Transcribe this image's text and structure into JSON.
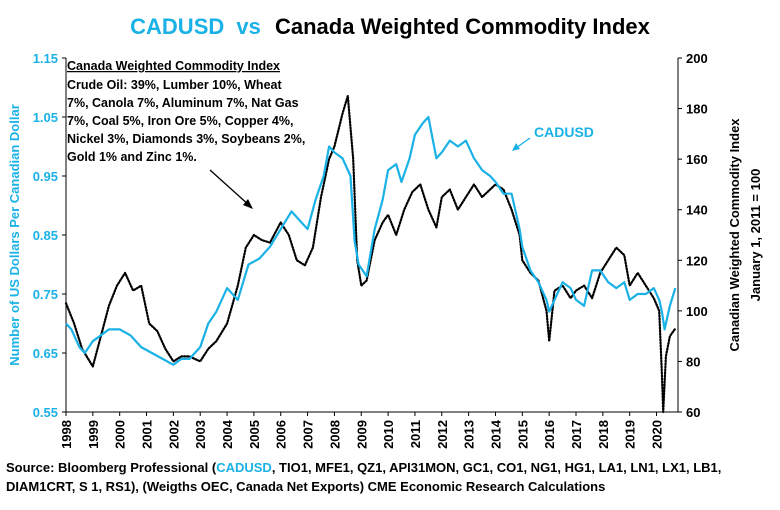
{
  "chart_data": {
    "type": "line",
    "title_part1": "CADUSD",
    "title_vs": "vs",
    "title_part2": "Canada Weighted Commodity Index",
    "ylabel_left": "Number of US Dollars Per Canadian Dollar",
    "ylabel_right_1": "Canadian Weighted Commodity Index",
    "ylabel_right_2": "January 1, 2011 = 100",
    "ylim_left": [
      0.55,
      1.15
    ],
    "yticks_left": [
      "1.15",
      "1.05",
      "0.95",
      "0.85",
      "0.75",
      "0.65",
      "0.55"
    ],
    "ylim_right": [
      60,
      200
    ],
    "yticks_right": [
      "200",
      "180",
      "160",
      "140",
      "120",
      "100",
      "80",
      "60"
    ],
    "xlim": [
      1998,
      2020.8
    ],
    "xticks": [
      "1998",
      "1999",
      "2000",
      "2001",
      "2002",
      "2003",
      "2004",
      "2005",
      "2006",
      "2007",
      "2008",
      "2009",
      "2010",
      "2011",
      "2012",
      "2013",
      "2014",
      "2015",
      "2016",
      "2017",
      "2018",
      "2019",
      "2020"
    ],
    "series": [
      {
        "name": "CADUSD",
        "axis": "left",
        "color": "#1ab2e6",
        "style": "solid",
        "x": [
          1998.0,
          1998.2,
          1998.5,
          1998.7,
          1999.0,
          1999.3,
          1999.6,
          2000.0,
          2000.4,
          2000.8,
          2001.2,
          2001.6,
          2002.0,
          2002.3,
          2002.6,
          2003.0,
          2003.3,
          2003.6,
          2004.0,
          2004.4,
          2004.8,
          2005.2,
          2005.6,
          2006.0,
          2006.4,
          2006.8,
          2007.0,
          2007.3,
          2007.6,
          2007.8,
          2008.0,
          2008.3,
          2008.6,
          2008.75,
          2008.9,
          2009.2,
          2009.5,
          2009.8,
          2010.0,
          2010.3,
          2010.5,
          2010.8,
          2011.0,
          2011.3,
          2011.5,
          2011.8,
          2012.0,
          2012.3,
          2012.6,
          2012.9,
          2013.2,
          2013.5,
          2013.8,
          2014.0,
          2014.3,
          2014.6,
          2014.9,
          2015.0,
          2015.3,
          2015.6,
          2015.9,
          2016.0,
          2016.2,
          2016.5,
          2016.8,
          2017.0,
          2017.3,
          2017.6,
          2017.9,
          2018.2,
          2018.5,
          2018.8,
          2019.0,
          2019.3,
          2019.6,
          2019.9,
          2020.1,
          2020.2,
          2020.3,
          2020.5,
          2020.7
        ],
        "y": [
          0.7,
          0.69,
          0.66,
          0.65,
          0.67,
          0.68,
          0.69,
          0.69,
          0.68,
          0.66,
          0.65,
          0.64,
          0.63,
          0.64,
          0.64,
          0.66,
          0.7,
          0.72,
          0.76,
          0.74,
          0.8,
          0.81,
          0.83,
          0.86,
          0.89,
          0.87,
          0.86,
          0.91,
          0.95,
          1.0,
          0.99,
          0.98,
          0.95,
          0.84,
          0.8,
          0.78,
          0.86,
          0.91,
          0.96,
          0.97,
          0.94,
          0.98,
          1.02,
          1.04,
          1.05,
          0.98,
          0.99,
          1.01,
          1.0,
          1.01,
          0.98,
          0.96,
          0.95,
          0.94,
          0.92,
          0.92,
          0.86,
          0.83,
          0.79,
          0.77,
          0.74,
          0.72,
          0.74,
          0.77,
          0.76,
          0.74,
          0.73,
          0.79,
          0.79,
          0.77,
          0.76,
          0.77,
          0.74,
          0.75,
          0.75,
          0.76,
          0.74,
          0.72,
          0.69,
          0.73,
          0.76
        ]
      },
      {
        "name": "Canada Weighted Commodity Index",
        "axis": "right",
        "color": "#000000",
        "style": "dotted",
        "x": [
          1998.0,
          1998.3,
          1998.6,
          1999.0,
          1999.3,
          1999.6,
          1999.9,
          2000.2,
          2000.5,
          2000.8,
          2001.1,
          2001.4,
          2001.7,
          2002.0,
          2002.3,
          2002.6,
          2003.0,
          2003.3,
          2003.6,
          2004.0,
          2004.4,
          2004.7,
          2005.0,
          2005.3,
          2005.6,
          2006.0,
          2006.3,
          2006.6,
          2006.9,
          2007.2,
          2007.5,
          2007.8,
          2008.0,
          2008.3,
          2008.5,
          2008.7,
          2008.85,
          2009.0,
          2009.2,
          2009.5,
          2009.8,
          2010.0,
          2010.3,
          2010.6,
          2010.9,
          2011.2,
          2011.5,
          2011.8,
          2012.0,
          2012.3,
          2012.6,
          2012.9,
          2013.2,
          2013.5,
          2013.8,
          2014.0,
          2014.3,
          2014.6,
          2014.9,
          2015.0,
          2015.3,
          2015.6,
          2015.9,
          2016.0,
          2016.2,
          2016.5,
          2016.8,
          2017.0,
          2017.3,
          2017.6,
          2017.9,
          2018.2,
          2018.5,
          2018.8,
          2019.0,
          2019.3,
          2019.6,
          2019.9,
          2020.1,
          2020.2,
          2020.25,
          2020.35,
          2020.5,
          2020.7
        ],
        "y": [
          103,
          95,
          85,
          78,
          90,
          102,
          110,
          115,
          108,
          110,
          95,
          92,
          85,
          80,
          82,
          82,
          80,
          85,
          88,
          95,
          110,
          125,
          130,
          128,
          127,
          135,
          130,
          120,
          118,
          125,
          145,
          160,
          165,
          178,
          185,
          160,
          120,
          110,
          112,
          128,
          135,
          138,
          130,
          140,
          147,
          150,
          140,
          133,
          145,
          148,
          140,
          145,
          150,
          145,
          148,
          150,
          148,
          140,
          130,
          120,
          115,
          112,
          100,
          88,
          108,
          110,
          105,
          108,
          110,
          105,
          115,
          120,
          125,
          122,
          110,
          115,
          110,
          105,
          100,
          75,
          60,
          82,
          90,
          93
        ]
      }
    ],
    "annotations": [
      {
        "label": "CADUSD",
        "color": "#1ab2e6"
      },
      {
        "title": "Canada Weighted Commodity Index",
        "lines": [
          "Crude Oil: 39%, Lumber 10%, Wheat",
          "7%, Canola 7%, Aluminum 7%, Nat Gas",
          "7%, Coal 5%, Iron Ore 5%, Copper 4%,",
          "Nickel 3%, Diamonds 3%, Soybeans 2%,",
          "Gold 1% and Zinc 1%."
        ]
      }
    ]
  },
  "source": {
    "prefix": "Source: Bloomberg Professional  (",
    "highlight": "CADUSD",
    "rest": ", TIO1, MFE1, QZ1, API31MON, GC1, CO1, NG1, HG1, LA1, LN1, LX1, LB1, DIAM1CRT, S 1, RS1), (Weigths OEC, Canada Net Exports) CME Economic Research Calculations"
  },
  "colors": {
    "accent": "#1ab2e6",
    "index_line": "#000000"
  }
}
